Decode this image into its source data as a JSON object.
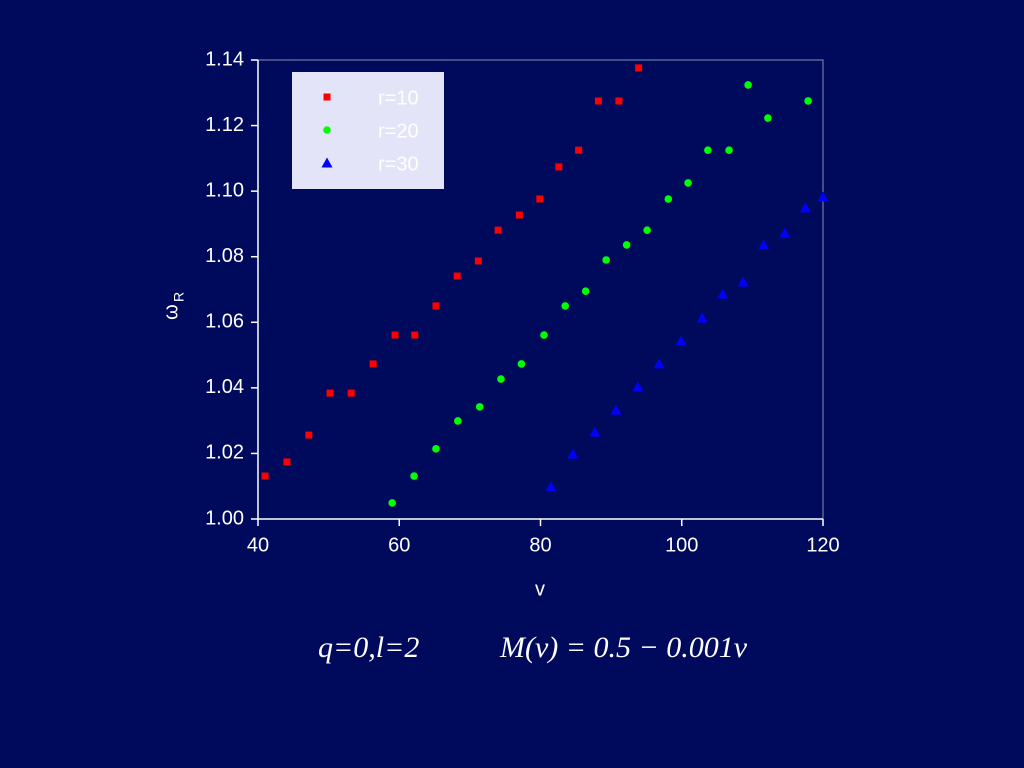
{
  "chart_data": {
    "type": "scatter",
    "x_label": "v",
    "y_label": "ω",
    "y_label_sub": "R",
    "annotations": [
      "q=0,l=2",
      "M(v) = 0.5 − 0.001v"
    ],
    "xlim": [
      40,
      120
    ],
    "xticks": [
      40,
      60,
      80,
      100,
      120
    ],
    "ylim": [
      1.0,
      1.14
    ],
    "yticks": [
      {
        "value": 1.0,
        "label": "1.00"
      },
      {
        "value": 1.02,
        "label": "1.02"
      },
      {
        "value": 1.04,
        "label": "1.04"
      },
      {
        "value": 1.06,
        "label": "1.06"
      },
      {
        "value": 1.08,
        "label": "1.08"
      },
      {
        "value": 1.1,
        "label": "1.10"
      },
      {
        "value": 1.12,
        "label": "1.12"
      },
      {
        "value": 1.14,
        "label": "1.14"
      }
    ],
    "legend": "upper left",
    "series": [
      {
        "name": "r=10",
        "color": "#ff0000",
        "marker": "square",
        "x": [
          41.0,
          44.1,
          47.2,
          50.2,
          53.2,
          56.3,
          59.4,
          62.2,
          65.2,
          68.2,
          71.2,
          74.0,
          77.0,
          79.9,
          82.6,
          85.4,
          88.2,
          91.1,
          93.9
        ],
        "values": [
          1.0131,
          1.0174,
          1.0256,
          1.0384,
          1.0384,
          1.0473,
          1.0561,
          1.0561,
          1.065,
          1.0741,
          1.0787,
          1.0881,
          1.0927,
          1.0976,
          1.1074,
          1.1125,
          1.1275,
          1.1275,
          1.1376
        ]
      },
      {
        "name": "r=20",
        "color": "#00ff00",
        "marker": "circle",
        "x": [
          59.0,
          62.1,
          65.2,
          68.3,
          71.4,
          74.4,
          77.3,
          80.5,
          83.5,
          86.4,
          89.3,
          92.2,
          95.1,
          98.1,
          100.9,
          103.7,
          106.7,
          109.4,
          112.2,
          117.9
        ],
        "values": [
          1.0049,
          1.0131,
          1.0214,
          1.0299,
          1.0342,
          1.0427,
          1.0473,
          1.0561,
          1.065,
          1.0695,
          1.079,
          1.0836,
          1.0881,
          1.0976,
          1.1025,
          1.1125,
          1.1125,
          1.1324,
          1.1223,
          1.1275
        ]
      },
      {
        "name": "r=30",
        "color": "#0000ff",
        "marker": "triangle",
        "x": [
          81.5,
          84.6,
          87.7,
          90.7,
          93.8,
          96.8,
          99.9,
          102.9,
          105.8,
          108.7,
          111.6,
          114.6,
          117.5,
          120.0
        ],
        "values": [
          1.0098,
          1.0198,
          1.0265,
          1.0332,
          1.0403,
          1.0473,
          1.0543,
          1.0613,
          1.0686,
          1.0723,
          1.0836,
          1.0872,
          1.0949,
          1.0982
        ]
      }
    ]
  }
}
